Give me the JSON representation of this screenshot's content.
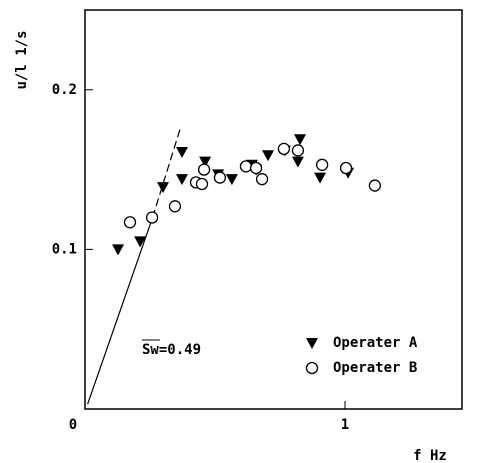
{
  "chart_data": {
    "type": "scatter",
    "y_label": "u/l  1/s",
    "x_label": "f  Hz",
    "annotation": "Sw=0.49",
    "xlim": [
      0,
      1.45
    ],
    "ylim": [
      0,
      0.25
    ],
    "xticks": [
      0,
      1
    ],
    "yticks": [
      0.1,
      0.2
    ],
    "legend": "lower right",
    "fit_line": {
      "x": [
        0.01,
        0.26,
        0.365
      ],
      "y": [
        0.003,
        0.12,
        0.175
      ]
    },
    "series": [
      {
        "name": "Operater A",
        "color": "#000000",
        "marker": "triangle-down",
        "x": [
          0.127,
          0.212,
          0.3,
          0.373,
          0.373,
          0.462,
          0.512,
          0.565,
          0.642,
          0.704,
          0.658,
          0.769,
          0.819,
          0.827,
          0.904,
          1.012
        ],
        "values": [
          0.1,
          0.105,
          0.139,
          0.144,
          0.161,
          0.155,
          0.147,
          0.144,
          0.153,
          0.159,
          0.15,
          0.162,
          0.155,
          0.169,
          0.145,
          0.148
        ]
      },
      {
        "name": "Operater B",
        "color": "#000000",
        "marker": "circle",
        "x": [
          0.173,
          0.258,
          0.346,
          0.427,
          0.45,
          0.458,
          0.519,
          0.619,
          0.658,
          0.681,
          0.765,
          0.819,
          0.912,
          1.004,
          1.115
        ],
        "values": [
          0.117,
          0.12,
          0.127,
          0.142,
          0.141,
          0.15,
          0.145,
          0.152,
          0.151,
          0.144,
          0.163,
          0.162,
          0.153,
          0.151,
          0.14
        ]
      }
    ]
  }
}
